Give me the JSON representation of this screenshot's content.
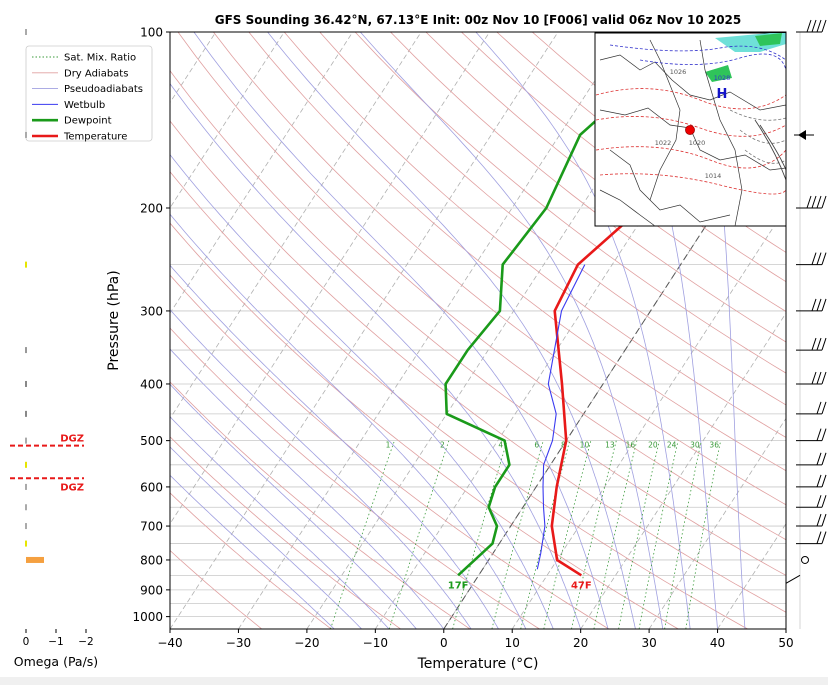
{
  "chart_data": {
    "type": "line",
    "title": "GFS Sounding 36.42°N, 67.13°E Init: 00z Nov 10 [F006] valid 06z Nov 10 2025",
    "xlabel": "Temperature (°C)",
    "ylabel": "Pressure (hPa)",
    "xlim": [
      -40,
      50
    ],
    "ylim": [
      1050,
      100
    ],
    "y_scale": "log",
    "grid": true,
    "x_ticks": [
      "−40",
      "−30",
      "−20",
      "−10",
      "0",
      "10",
      "20",
      "30",
      "40",
      "50"
    ],
    "y_ticks": [
      "100",
      "200",
      "300",
      "400",
      "500",
      "600",
      "700",
      "800",
      "900",
      "1000"
    ],
    "legend": {
      "position": "top-left",
      "entries": [
        "Sat. Mix. Ratio",
        "Dry Adiabats",
        "Pseudoadiabats",
        "Wetbulb",
        "Dewpoint",
        "Temperature"
      ]
    },
    "series": [
      {
        "name": "Temperature",
        "color": "#e81919",
        "points": [
          [
            1,
            100
          ],
          [
            -6,
            150
          ],
          [
            -15,
            250
          ],
          [
            -14,
            300
          ],
          [
            -6,
            400
          ],
          [
            0,
            500
          ],
          [
            3,
            600
          ],
          [
            6,
            700
          ],
          [
            10,
            800
          ],
          [
            15,
            850
          ]
        ]
      },
      {
        "name": "Dewpoint",
        "color": "#1a9a1a",
        "points": [
          [
            -20,
            100
          ],
          [
            -27,
            150
          ],
          [
            -25,
            200
          ],
          [
            -26,
            250
          ],
          [
            -22,
            300
          ],
          [
            -23,
            350
          ],
          [
            -23,
            400
          ],
          [
            -20,
            450
          ],
          [
            -9,
            500
          ],
          [
            -6,
            550
          ],
          [
            -6,
            600
          ],
          [
            -5,
            650
          ],
          [
            -2,
            700
          ],
          [
            -1,
            750
          ],
          [
            -3,
            850
          ]
        ]
      },
      {
        "name": "Wetbulb",
        "color": "#3a3af0",
        "points": [
          [
            -14,
            250
          ],
          [
            -13,
            300
          ],
          [
            -8,
            400
          ],
          [
            -4,
            450
          ],
          [
            -2,
            500
          ],
          [
            -1,
            550
          ],
          [
            1,
            600
          ],
          [
            3,
            650
          ],
          [
            5,
            700
          ],
          [
            7,
            780
          ],
          [
            8,
            830
          ]
        ]
      }
    ],
    "mixing_ratio_labels": [
      "1",
      "2",
      "4",
      "6",
      "8",
      "10",
      "13",
      "16",
      "20",
      "24",
      "30",
      "36"
    ],
    "surface_labels": {
      "temperature": "47F",
      "dewpoint": "17F"
    },
    "omega": {
      "xlabel": "Omega (Pa/s)",
      "x_ticks": [
        "0",
        "−1",
        "−2"
      ],
      "dgz_label": "DGZ",
      "dgz_bounds_hpa": [
        510,
        580
      ]
    },
    "wind_barbs_hpa": [
      100,
      150,
      200,
      250,
      300,
      350,
      400,
      450,
      500,
      550,
      600,
      650,
      700,
      750,
      800,
      850
    ],
    "inset_map": {
      "high_label": "H",
      "isobar_labels": [
        "1028",
        "1026",
        "1022",
        "1020",
        "1014"
      ]
    }
  }
}
